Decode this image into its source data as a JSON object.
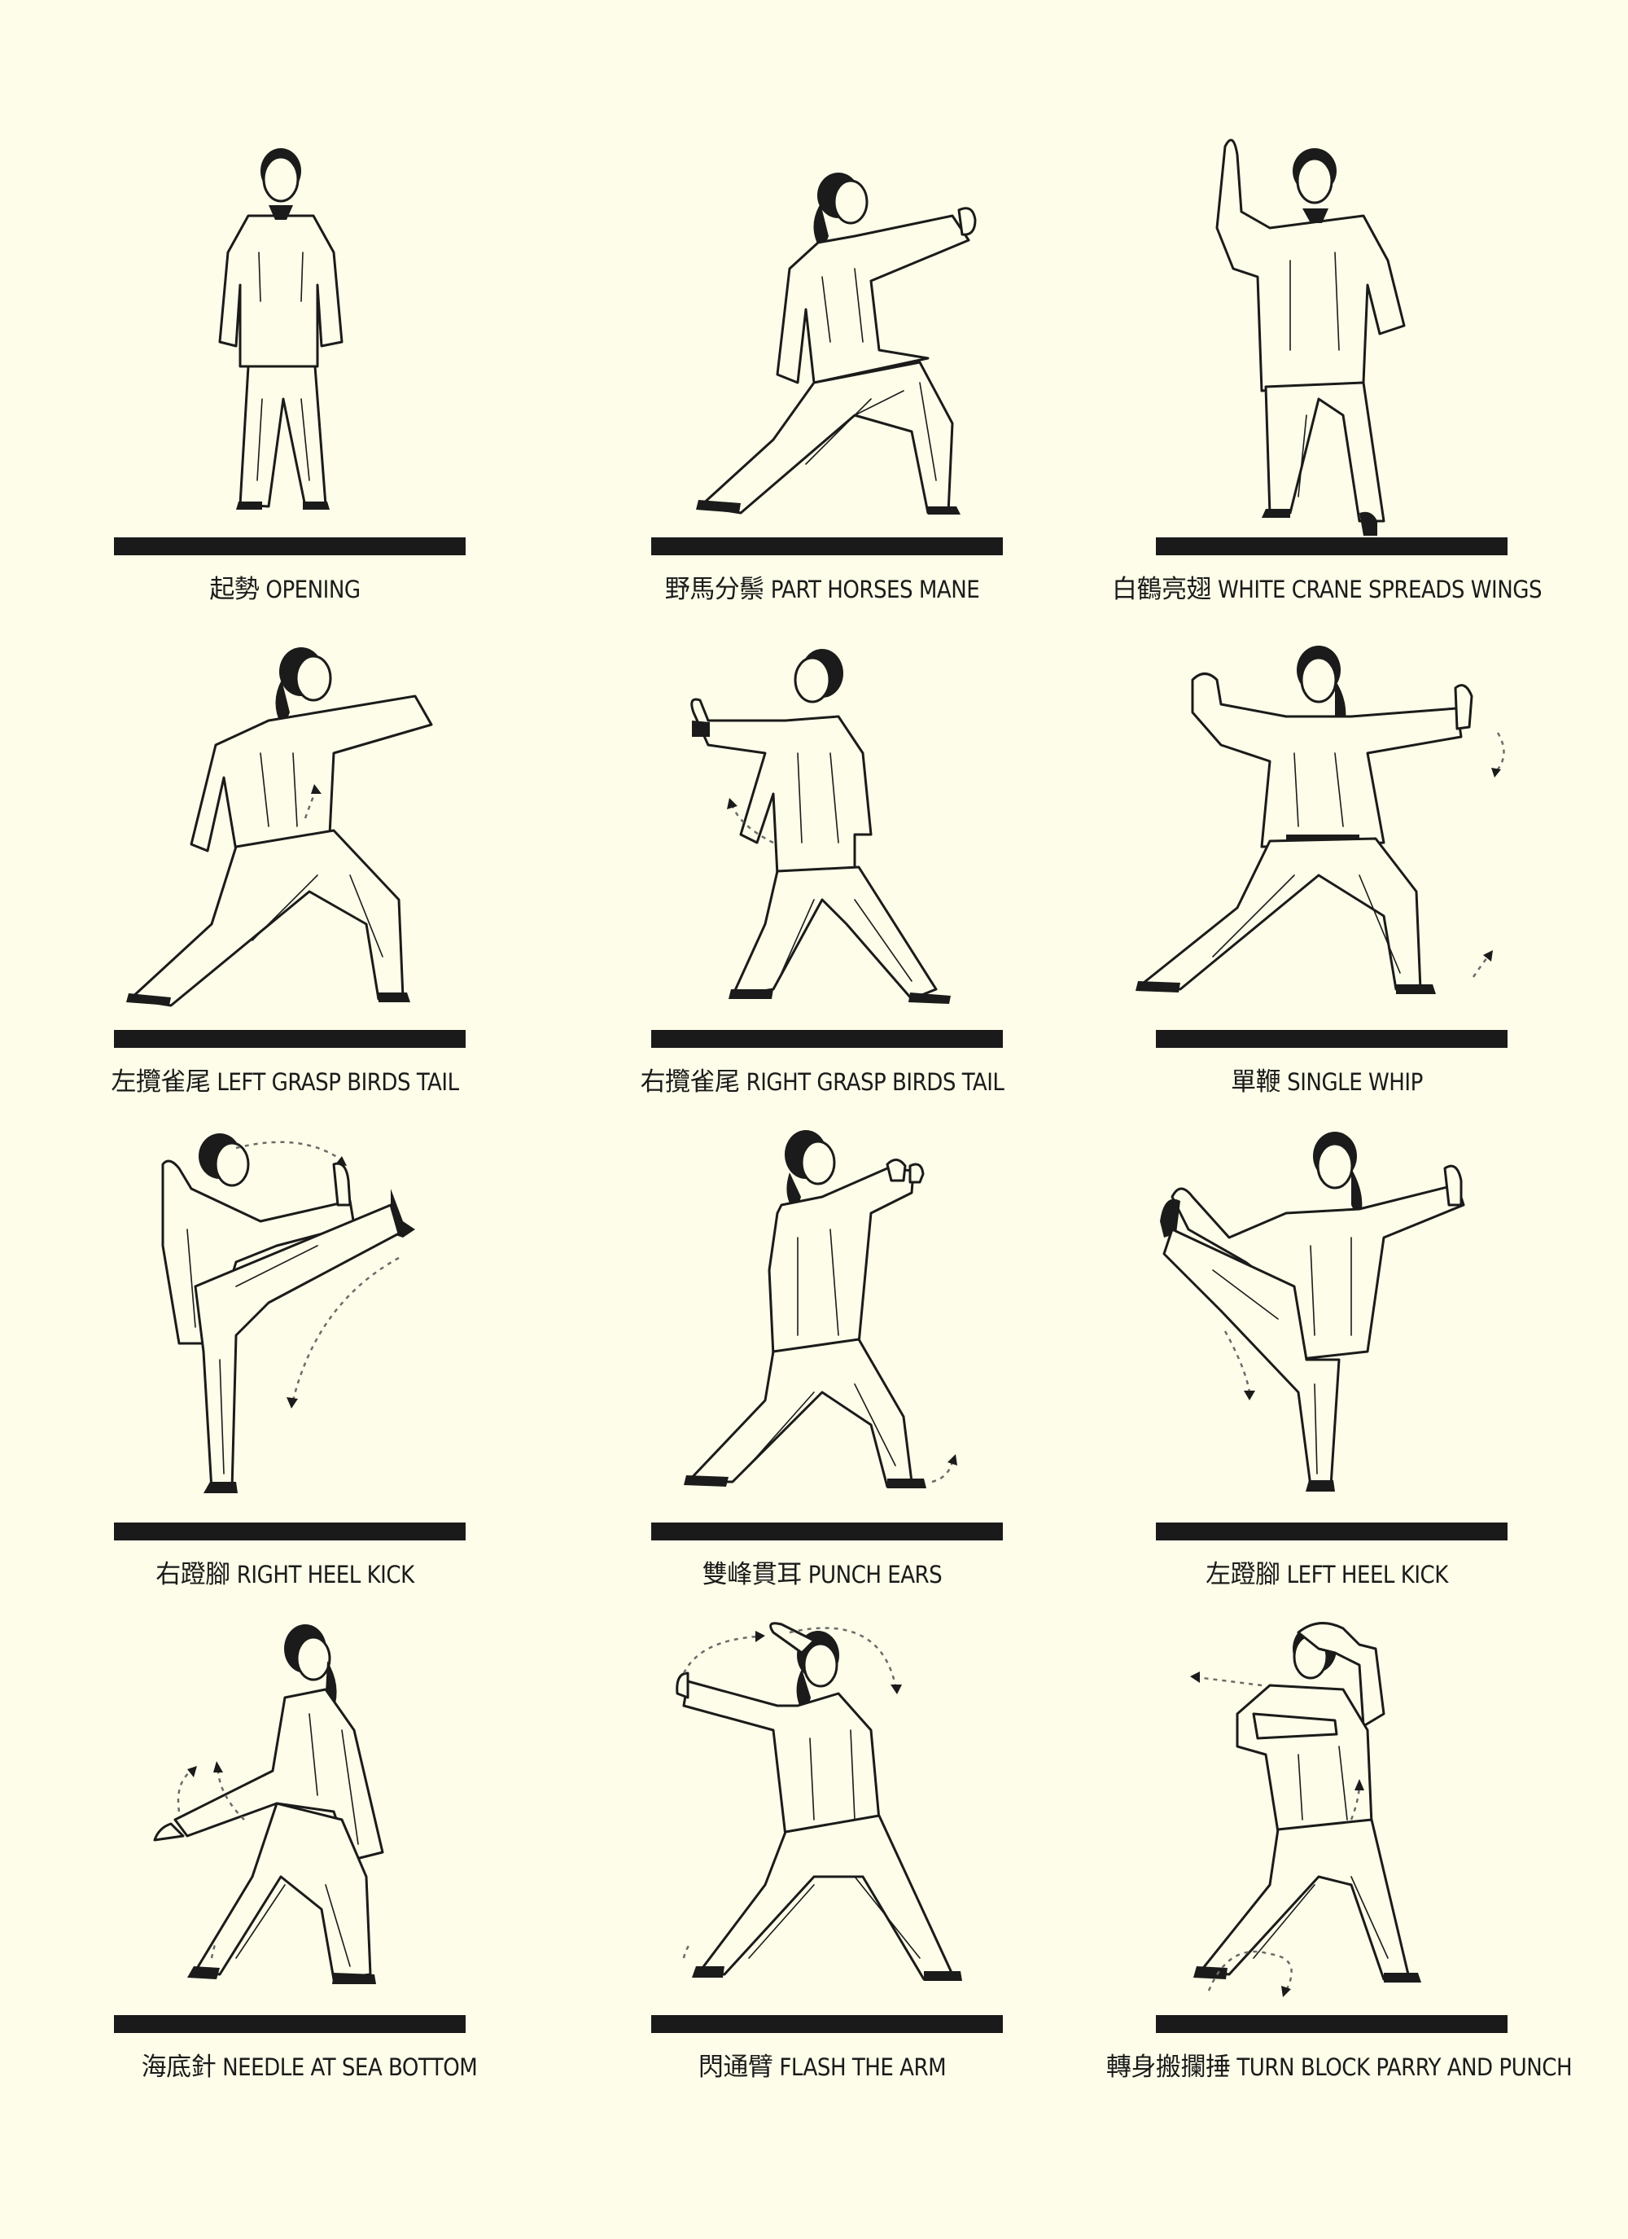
{
  "poses": [
    {
      "zh": "起勢",
      "en": "OPENING"
    },
    {
      "zh": "野馬分鬃",
      "en": "PART HORSES MANE"
    },
    {
      "zh": "白鶴亮翅",
      "en": "WHITE CRANE SPREADS WINGS"
    },
    {
      "zh": "左攬雀尾",
      "en": "LEFT GRASP BIRDS TAIL"
    },
    {
      "zh": "右攬雀尾",
      "en": "RIGHT GRASP BIRDS TAIL"
    },
    {
      "zh": "單鞭",
      "en": "SINGLE WHIP"
    },
    {
      "zh": "右蹬腳",
      "en": "RIGHT HEEL KICK"
    },
    {
      "zh": "雙峰貫耳",
      "en": "PUNCH EARS"
    },
    {
      "zh": "左蹬腳",
      "en": "LEFT HEEL KICK"
    },
    {
      "zh": "海底針",
      "en": "NEEDLE AT SEA BOTTOM"
    },
    {
      "zh": "閃通臂",
      "en": "FLASH THE ARM"
    },
    {
      "zh": "轉身搬攔捶",
      "en": "TURN BLOCK PARRY AND PUNCH"
    }
  ],
  "colors": {
    "background": "#fdfde9",
    "ink": "#1b1b1b",
    "arrow": "#6b6b6b"
  }
}
